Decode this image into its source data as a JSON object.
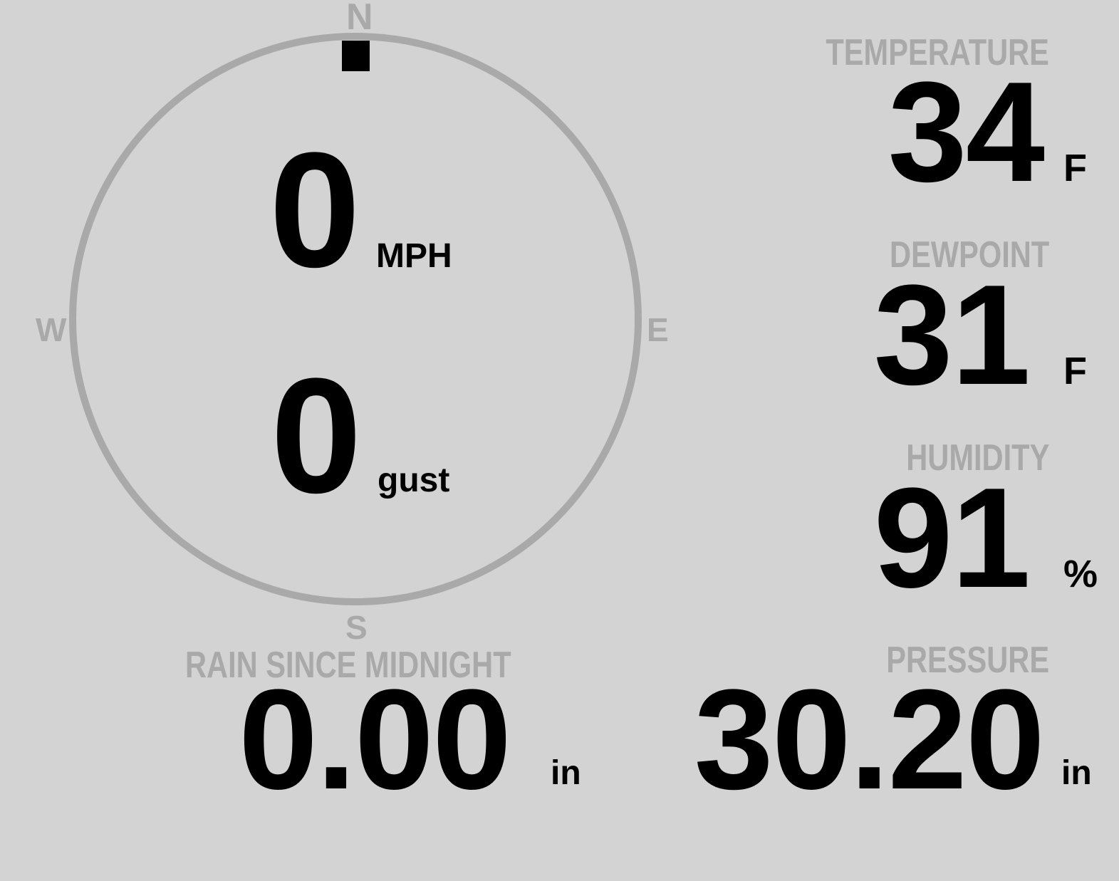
{
  "wind": {
    "speed": "0",
    "speed_unit": "MPH",
    "gust": "0",
    "gust_unit": "gust",
    "direction_degrees": 0,
    "cardinals": {
      "north": "N",
      "east": "E",
      "south": "S",
      "west": "W"
    }
  },
  "temperature": {
    "label": "TEMPERATURE",
    "value": "34",
    "unit": "F"
  },
  "dewpoint": {
    "label": "DEWPOINT",
    "value": "31",
    "unit": "F"
  },
  "humidity": {
    "label": "HUMIDITY",
    "value": "91",
    "unit": "%"
  },
  "pressure": {
    "label": "PRESSURE",
    "value": "30.20",
    "unit": "in"
  },
  "rain": {
    "label": "RAIN SINCE MIDNIGHT",
    "value": "0.00",
    "unit": "in"
  },
  "colors": {
    "background": "#d3d3d3",
    "muted": "#a9a9a9",
    "value": "#000000"
  }
}
